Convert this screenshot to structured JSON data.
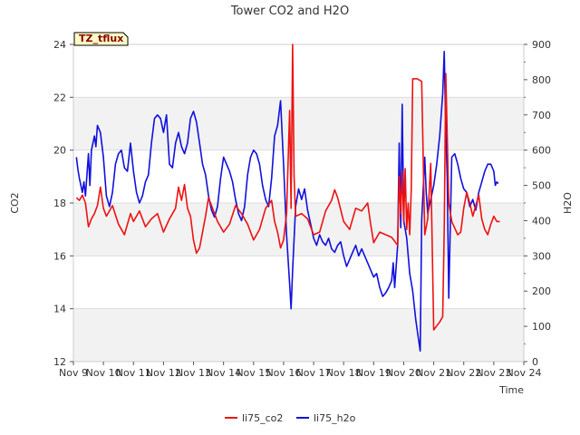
{
  "chart_data": {
    "type": "line",
    "title": "Tower CO2 and H2O",
    "xlabel": "Time",
    "ylabel_left": "CO2",
    "ylabel_right": "H2O",
    "ylim_left": [
      12,
      24
    ],
    "ylim_right": [
      0,
      900
    ],
    "xlim": [
      9,
      24
    ],
    "left_ticks": [
      12,
      14,
      16,
      18,
      20,
      22,
      24
    ],
    "right_ticks": [
      0,
      100,
      200,
      300,
      400,
      500,
      600,
      700,
      800,
      900
    ],
    "x_ticks": [
      {
        "v": 9,
        "label": "Nov 9"
      },
      {
        "v": 10,
        "label": "Nov 10"
      },
      {
        "v": 11,
        "label": "Nov 11"
      },
      {
        "v": 12,
        "label": "Nov 12"
      },
      {
        "v": 13,
        "label": "Nov 13"
      },
      {
        "v": 14,
        "label": "Nov 14"
      },
      {
        "v": 15,
        "label": "Nov 15"
      },
      {
        "v": 16,
        "label": "Nov 16"
      },
      {
        "v": 17,
        "label": "Nov 17"
      },
      {
        "v": 18,
        "label": "Nov 18"
      },
      {
        "v": 19,
        "label": "Nov 19"
      },
      {
        "v": 20,
        "label": "Nov 20"
      },
      {
        "v": 21,
        "label": "Nov 21"
      },
      {
        "v": 22,
        "label": "Nov 22"
      },
      {
        "v": 23,
        "label": "Nov 23"
      },
      {
        "v": 24,
        "label": "Nov 24"
      }
    ],
    "annotation": "TZ_tflux",
    "legend_position": "bottom-center",
    "series": [
      {
        "name": "li75_co2",
        "axis": "left",
        "color": "#ee1111",
        "points": [
          [
            9.1,
            18.2
          ],
          [
            9.2,
            18.1
          ],
          [
            9.3,
            18.3
          ],
          [
            9.4,
            18.0
          ],
          [
            9.5,
            17.1
          ],
          [
            9.6,
            17.4
          ],
          [
            9.7,
            17.6
          ],
          [
            9.8,
            17.9
          ],
          [
            9.9,
            18.6
          ],
          [
            10.0,
            17.8
          ],
          [
            10.1,
            17.5
          ],
          [
            10.3,
            17.9
          ],
          [
            10.5,
            17.2
          ],
          [
            10.7,
            16.8
          ],
          [
            10.9,
            17.6
          ],
          [
            11.0,
            17.3
          ],
          [
            11.2,
            17.7
          ],
          [
            11.4,
            17.1
          ],
          [
            11.6,
            17.4
          ],
          [
            11.8,
            17.6
          ],
          [
            12.0,
            16.9
          ],
          [
            12.2,
            17.4
          ],
          [
            12.4,
            17.8
          ],
          [
            12.5,
            18.6
          ],
          [
            12.6,
            18.1
          ],
          [
            12.7,
            18.7
          ],
          [
            12.8,
            17.8
          ],
          [
            12.9,
            17.5
          ],
          [
            13.0,
            16.6
          ],
          [
            13.1,
            16.1
          ],
          [
            13.2,
            16.3
          ],
          [
            13.4,
            17.5
          ],
          [
            13.5,
            18.2
          ],
          [
            13.6,
            17.9
          ],
          [
            13.8,
            17.3
          ],
          [
            14.0,
            16.9
          ],
          [
            14.2,
            17.2
          ],
          [
            14.4,
            17.9
          ],
          [
            14.6,
            17.6
          ],
          [
            14.8,
            17.2
          ],
          [
            15.0,
            16.6
          ],
          [
            15.2,
            17.0
          ],
          [
            15.4,
            17.8
          ],
          [
            15.6,
            18.1
          ],
          [
            15.7,
            17.3
          ],
          [
            15.8,
            16.9
          ],
          [
            15.9,
            16.3
          ],
          [
            16.0,
            16.6
          ],
          [
            16.1,
            17.6
          ],
          [
            16.2,
            21.5
          ],
          [
            16.25,
            17.8
          ],
          [
            16.3,
            24.0
          ],
          [
            16.35,
            19.0
          ],
          [
            16.4,
            17.5
          ],
          [
            16.6,
            17.6
          ],
          [
            16.8,
            17.4
          ],
          [
            17.0,
            16.8
          ],
          [
            17.2,
            16.9
          ],
          [
            17.4,
            17.7
          ],
          [
            17.6,
            18.1
          ],
          [
            17.7,
            18.5
          ],
          [
            17.8,
            18.2
          ],
          [
            18.0,
            17.3
          ],
          [
            18.2,
            17.0
          ],
          [
            18.4,
            17.8
          ],
          [
            18.6,
            17.7
          ],
          [
            18.8,
            18.0
          ],
          [
            18.9,
            17.2
          ],
          [
            19.0,
            16.5
          ],
          [
            19.2,
            16.9
          ],
          [
            19.4,
            16.8
          ],
          [
            19.6,
            16.7
          ],
          [
            19.8,
            16.4
          ],
          [
            19.85,
            19.0
          ],
          [
            19.9,
            17.6
          ],
          [
            19.95,
            19.2
          ],
          [
            20.0,
            17.3
          ],
          [
            20.05,
            19.3
          ],
          [
            20.1,
            17.0
          ],
          [
            20.15,
            18.0
          ],
          [
            20.2,
            16.8
          ],
          [
            20.25,
            18.5
          ],
          [
            20.3,
            22.7
          ],
          [
            20.45,
            22.7
          ],
          [
            20.6,
            22.6
          ],
          [
            20.7,
            16.8
          ],
          [
            20.8,
            17.4
          ],
          [
            20.9,
            19.5
          ],
          [
            21.0,
            13.2
          ],
          [
            21.2,
            13.5
          ],
          [
            21.3,
            13.7
          ],
          [
            21.35,
            17.0
          ],
          [
            21.4,
            22.9
          ],
          [
            21.5,
            18.0
          ],
          [
            21.6,
            17.3
          ],
          [
            21.8,
            16.8
          ],
          [
            21.9,
            16.9
          ],
          [
            22.0,
            17.8
          ],
          [
            22.1,
            18.4
          ],
          [
            22.2,
            18.0
          ],
          [
            22.3,
            17.5
          ],
          [
            22.4,
            17.9
          ],
          [
            22.5,
            18.3
          ],
          [
            22.6,
            17.4
          ],
          [
            22.7,
            17.0
          ],
          [
            22.8,
            16.8
          ],
          [
            22.9,
            17.2
          ],
          [
            23.0,
            17.5
          ],
          [
            23.1,
            17.3
          ],
          [
            23.2,
            17.3
          ]
        ]
      },
      {
        "name": "li75_h2o",
        "axis": "right",
        "color": "#1111dd",
        "points": [
          [
            9.1,
            580
          ],
          [
            9.15,
            545
          ],
          [
            9.2,
            520
          ],
          [
            9.3,
            480
          ],
          [
            9.35,
            510
          ],
          [
            9.4,
            470
          ],
          [
            9.5,
            590
          ],
          [
            9.55,
            500
          ],
          [
            9.6,
            600
          ],
          [
            9.7,
            640
          ],
          [
            9.75,
            610
          ],
          [
            9.8,
            670
          ],
          [
            9.85,
            660
          ],
          [
            9.9,
            650
          ],
          [
            10.0,
            580
          ],
          [
            10.1,
            470
          ],
          [
            10.2,
            440
          ],
          [
            10.3,
            480
          ],
          [
            10.4,
            560
          ],
          [
            10.5,
            590
          ],
          [
            10.6,
            600
          ],
          [
            10.7,
            550
          ],
          [
            10.8,
            540
          ],
          [
            10.9,
            620
          ],
          [
            11.0,
            540
          ],
          [
            11.1,
            480
          ],
          [
            11.2,
            450
          ],
          [
            11.3,
            470
          ],
          [
            11.4,
            510
          ],
          [
            11.5,
            530
          ],
          [
            11.6,
            620
          ],
          [
            11.7,
            690
          ],
          [
            11.8,
            700
          ],
          [
            11.9,
            690
          ],
          [
            12.0,
            650
          ],
          [
            12.1,
            700
          ],
          [
            12.2,
            560
          ],
          [
            12.3,
            550
          ],
          [
            12.4,
            620
          ],
          [
            12.5,
            650
          ],
          [
            12.6,
            610
          ],
          [
            12.7,
            590
          ],
          [
            12.8,
            620
          ],
          [
            12.9,
            690
          ],
          [
            13.0,
            710
          ],
          [
            13.1,
            680
          ],
          [
            13.2,
            620
          ],
          [
            13.3,
            560
          ],
          [
            13.4,
            530
          ],
          [
            13.5,
            470
          ],
          [
            13.6,
            430
          ],
          [
            13.7,
            410
          ],
          [
            13.8,
            440
          ],
          [
            13.9,
            520
          ],
          [
            14.0,
            580
          ],
          [
            14.1,
            560
          ],
          [
            14.2,
            540
          ],
          [
            14.3,
            510
          ],
          [
            14.4,
            460
          ],
          [
            14.5,
            420
          ],
          [
            14.6,
            400
          ],
          [
            14.7,
            440
          ],
          [
            14.8,
            530
          ],
          [
            14.9,
            580
          ],
          [
            15.0,
            600
          ],
          [
            15.1,
            590
          ],
          [
            15.2,
            560
          ],
          [
            15.3,
            500
          ],
          [
            15.4,
            460
          ],
          [
            15.5,
            440
          ],
          [
            15.6,
            520
          ],
          [
            15.7,
            640
          ],
          [
            15.8,
            670
          ],
          [
            15.9,
            740
          ],
          [
            16.0,
            560
          ],
          [
            16.1,
            360
          ],
          [
            16.2,
            220
          ],
          [
            16.25,
            150
          ],
          [
            16.3,
            260
          ],
          [
            16.4,
            440
          ],
          [
            16.5,
            490
          ],
          [
            16.6,
            460
          ],
          [
            16.7,
            490
          ],
          [
            16.8,
            430
          ],
          [
            16.9,
            390
          ],
          [
            17.0,
            350
          ],
          [
            17.1,
            330
          ],
          [
            17.2,
            360
          ],
          [
            17.3,
            340
          ],
          [
            17.4,
            330
          ],
          [
            17.5,
            350
          ],
          [
            17.6,
            320
          ],
          [
            17.7,
            310
          ],
          [
            17.8,
            330
          ],
          [
            17.9,
            340
          ],
          [
            18.0,
            300
          ],
          [
            18.1,
            270
          ],
          [
            18.2,
            290
          ],
          [
            18.3,
            310
          ],
          [
            18.4,
            330
          ],
          [
            18.5,
            300
          ],
          [
            18.6,
            320
          ],
          [
            18.7,
            300
          ],
          [
            18.8,
            280
          ],
          [
            18.9,
            260
          ],
          [
            19.0,
            240
          ],
          [
            19.1,
            250
          ],
          [
            19.2,
            210
          ],
          [
            19.3,
            185
          ],
          [
            19.4,
            195
          ],
          [
            19.5,
            210
          ],
          [
            19.6,
            230
          ],
          [
            19.65,
            280
          ],
          [
            19.7,
            210
          ],
          [
            19.8,
            330
          ],
          [
            19.85,
            620
          ],
          [
            19.9,
            380
          ],
          [
            19.95,
            730
          ],
          [
            20.0,
            400
          ],
          [
            20.1,
            350
          ],
          [
            20.2,
            250
          ],
          [
            20.3,
            200
          ],
          [
            20.4,
            120
          ],
          [
            20.5,
            60
          ],
          [
            20.55,
            30
          ],
          [
            20.6,
            400
          ],
          [
            20.7,
            580
          ],
          [
            20.75,
            480
          ],
          [
            20.8,
            420
          ],
          [
            20.9,
            460
          ],
          [
            21.0,
            500
          ],
          [
            21.1,
            560
          ],
          [
            21.2,
            640
          ],
          [
            21.3,
            760
          ],
          [
            21.35,
            880
          ],
          [
            21.4,
            660
          ],
          [
            21.45,
            520
          ],
          [
            21.5,
            180
          ],
          [
            21.6,
            580
          ],
          [
            21.7,
            590
          ],
          [
            21.8,
            560
          ],
          [
            21.9,
            520
          ],
          [
            22.0,
            490
          ],
          [
            22.1,
            480
          ],
          [
            22.2,
            440
          ],
          [
            22.3,
            460
          ],
          [
            22.4,
            430
          ],
          [
            22.5,
            480
          ],
          [
            22.6,
            510
          ],
          [
            22.7,
            540
          ],
          [
            22.8,
            560
          ],
          [
            22.9,
            560
          ],
          [
            23.0,
            540
          ],
          [
            23.05,
            500
          ],
          [
            23.1,
            510
          ],
          [
            23.15,
            505
          ]
        ]
      }
    ]
  }
}
